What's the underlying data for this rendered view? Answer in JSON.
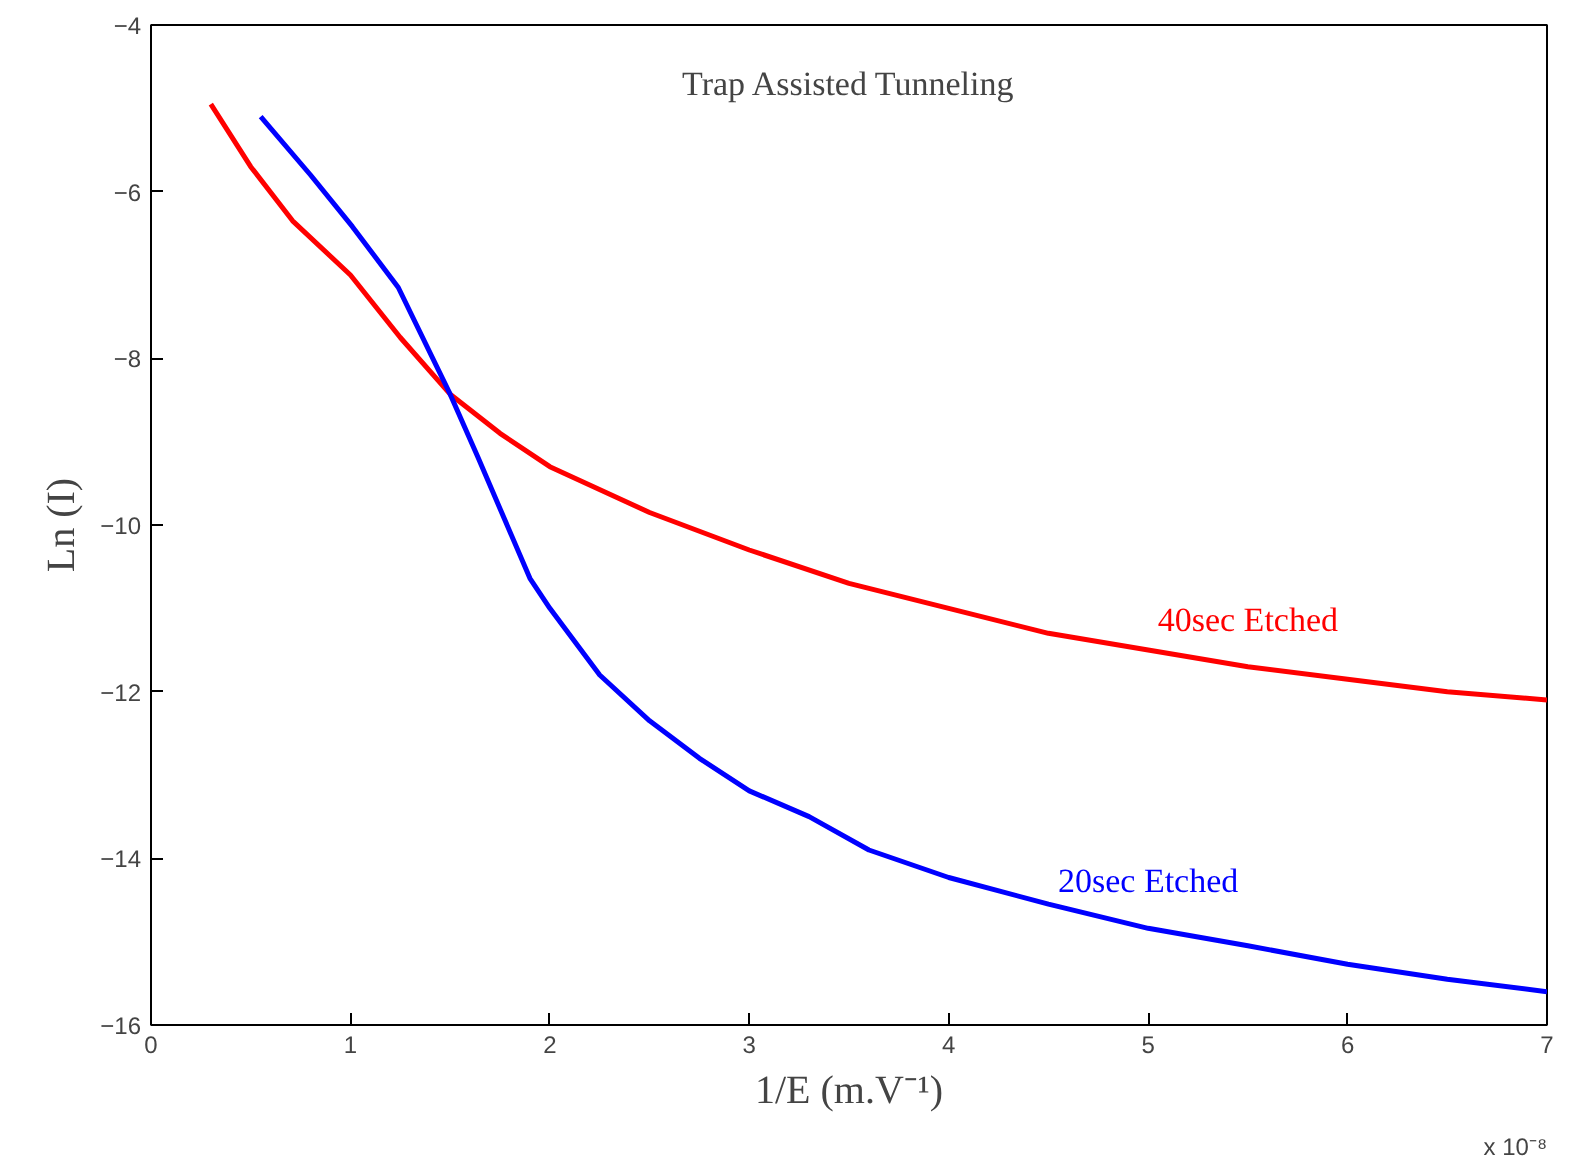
{
  "chart_data": {
    "type": "line",
    "title": "Trap Assisted Tunneling",
    "xlabel": "1/E (m.V⁻¹)",
    "ylabel": "Ln (I)",
    "annotations": [
      "x 10⁻⁸"
    ],
    "series": [
      {
        "name": "40sec Etched",
        "color": "#ff0000",
        "x": [
          0.3,
          0.5,
          0.71,
          1.0,
          1.25,
          1.5,
          1.75,
          2.0,
          2.5,
          3.0,
          3.5,
          4.0,
          4.5,
          5.0,
          5.5,
          6.0,
          6.5,
          7.0
        ],
        "values": [
          -4.95,
          -5.7,
          -6.35,
          -7.0,
          -7.75,
          -8.43,
          -8.9,
          -9.3,
          -9.85,
          -10.3,
          -10.7,
          -11.0,
          -11.3,
          -11.5,
          -11.7,
          -11.85,
          -12.0,
          -12.1
        ]
      },
      {
        "name": "20sec Etched",
        "color": "#0000ff",
        "x": [
          0.55,
          0.8,
          1.01,
          1.24,
          1.5,
          1.64,
          1.9,
          2.0,
          2.25,
          2.5,
          2.75,
          3.0,
          3.3,
          3.6,
          4.0,
          4.5,
          5.0,
          5.5,
          6.0,
          6.5,
          7.0
        ],
        "values": [
          -5.1,
          -5.8,
          -6.42,
          -7.15,
          -8.43,
          -9.19,
          -10.64,
          -11.0,
          -11.8,
          -12.35,
          -12.8,
          -13.19,
          -13.5,
          -13.9,
          -14.23,
          -14.55,
          -14.84,
          -15.05,
          -15.27,
          -15.45,
          -15.6
        ]
      }
    ],
    "xlim": [
      0,
      7
    ],
    "ylim": [
      -16,
      -4
    ],
    "xticks": [
      0,
      1,
      2,
      3,
      4,
      5,
      6,
      7
    ],
    "yticks": [
      -16,
      -14,
      -12,
      -10,
      -8,
      -6,
      -4
    ],
    "grid": false,
    "marker": "none",
    "line_style": "solid"
  }
}
